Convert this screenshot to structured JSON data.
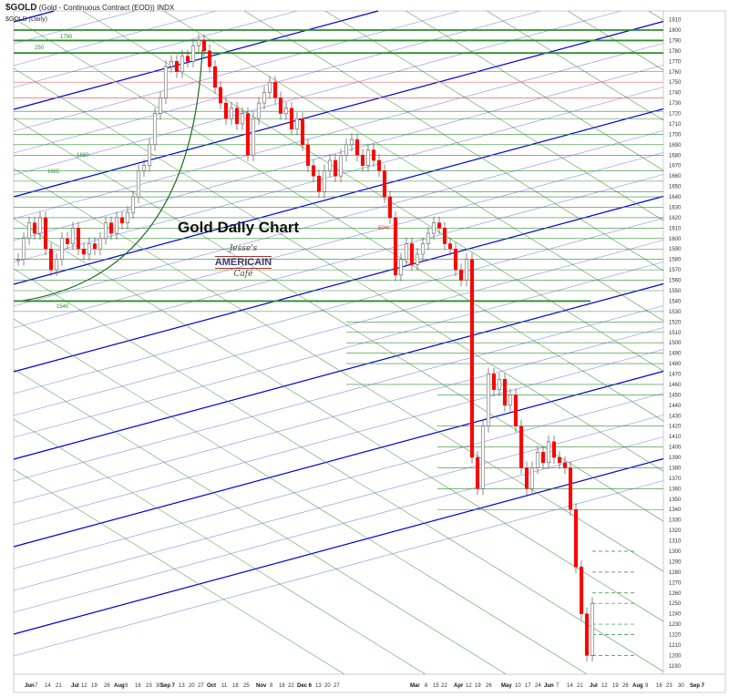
{
  "header": {
    "symbol": "$GOLD",
    "description": "(Gold - Continuous Contract (EOD)) INDX",
    "sub": "$GOLD (Daily)"
  },
  "annotations": {
    "title": "Gold Daily Chart",
    "label_1790": "1790",
    "label_250": "250",
    "label_1680": "1680",
    "label_1665": "1665",
    "label_1540": "1540",
    "label_50pct": "50%"
  },
  "logo": {
    "line1": "Jesse's",
    "line2": "AMERICAIN",
    "line3": "Café"
  },
  "colors": {
    "up": "#ffffff",
    "down": "#ff0000",
    "level": "#2e8b2e",
    "channel": "#0000dd",
    "channel_light": "#8888ee",
    "resistance": "#ee6666"
  },
  "chart_data": {
    "type": "candlestick",
    "title": "Gold Daily Chart",
    "ylim": [
      1190,
      1810
    ],
    "y_ticks": [
      1810,
      1800,
      1790,
      1780,
      1770,
      1760,
      1750,
      1740,
      1730,
      1720,
      1710,
      1700,
      1690,
      1680,
      1670,
      1660,
      1650,
      1640,
      1630,
      1620,
      1610,
      1600,
      1590,
      1580,
      1570,
      1560,
      1550,
      1540,
      1530,
      1520,
      1510,
      1500,
      1490,
      1480,
      1470,
      1460,
      1450,
      1440,
      1430,
      1420,
      1410,
      1400,
      1390,
      1380,
      1370,
      1360,
      1350,
      1340,
      1330,
      1320,
      1310,
      1300,
      1290,
      1280,
      1270,
      1260,
      1250,
      1240,
      1230,
      1220,
      1210,
      1200,
      1190
    ],
    "x_ticks": [
      "Jun",
      "7",
      "14",
      "21",
      "Jul",
      "12",
      "19",
      "26",
      "Aug",
      "9",
      "16",
      "23",
      "30",
      "Sep 7",
      "13",
      "20",
      "27",
      "Oct",
      "11",
      "18",
      "25",
      "Nov",
      "8",
      "16",
      "22",
      "Dec 6",
      "13",
      "20",
      "27",
      "Mar",
      "8",
      "15",
      "22",
      "Apr",
      "12",
      "19",
      "26",
      "May",
      "10",
      "17",
      "24",
      "Jun",
      "7",
      "14",
      "21",
      "Jul",
      "12",
      "19",
      "26",
      "Aug",
      "9",
      "16",
      "23",
      "30",
      "Sep 7"
    ],
    "closes": [
      1580,
      1600,
      1615,
      1605,
      1620,
      1590,
      1570,
      1580,
      1600,
      1595,
      1610,
      1590,
      1585,
      1595,
      1590,
      1600,
      1615,
      1605,
      1620,
      1615,
      1625,
      1640,
      1665,
      1670,
      1690,
      1720,
      1735,
      1765,
      1770,
      1760,
      1775,
      1770,
      1785,
      1790,
      1780,
      1765,
      1745,
      1730,
      1715,
      1725,
      1710,
      1720,
      1680,
      1715,
      1730,
      1740,
      1750,
      1735,
      1720,
      1725,
      1705,
      1715,
      1690,
      1670,
      1660,
      1645,
      1665,
      1675,
      1660,
      1680,
      1690,
      1695,
      1680,
      1670,
      1685,
      1675,
      1665,
      1640,
      1620,
      1565,
      1580,
      1595,
      1575,
      1585,
      1595,
      1605,
      1615,
      1610,
      1595,
      1590,
      1570,
      1560,
      1580,
      1390,
      1360,
      1420,
      1470,
      1455,
      1465,
      1440,
      1450,
      1420,
      1380,
      1360,
      1380,
      1395,
      1385,
      1405,
      1390,
      1385,
      1380,
      1340,
      1285,
      1240,
      1200,
      1250
    ],
    "levels_thick": [
      1800,
      1790,
      1778,
      1540
    ],
    "levels_thin": [
      1760,
      1722,
      1715,
      1700,
      1690,
      1680,
      1665,
      1655,
      1645,
      1640,
      1630,
      1620,
      1610,
      1600,
      1590,
      1580,
      1570,
      1560,
      1550,
      1530,
      1520,
      1510,
      1500,
      1490,
      1480,
      1460,
      1450,
      1420,
      1400,
      1380,
      1360,
      1340
    ],
    "levels_red": [
      1750,
      1735
    ],
    "levels_dashed": [
      1300,
      1280,
      1260,
      1250,
      1230,
      1220,
      1200
    ]
  }
}
